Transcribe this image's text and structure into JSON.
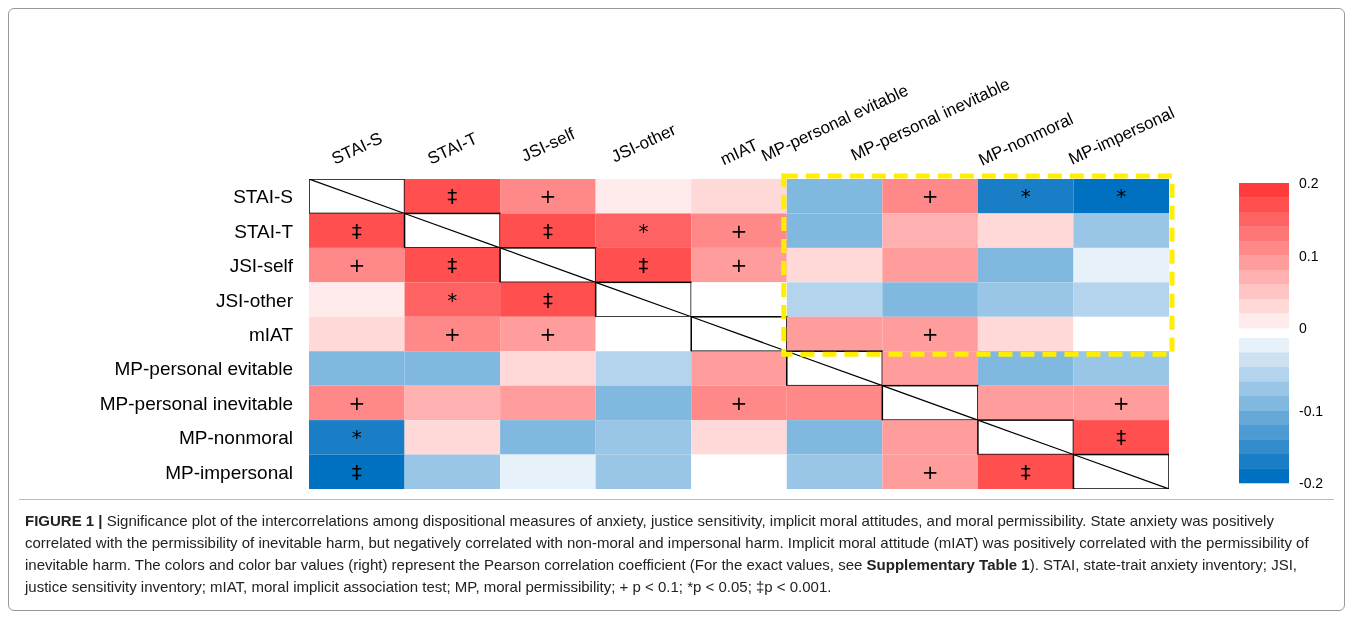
{
  "chart_data": {
    "type": "heatmap",
    "categories": [
      "STAI-S",
      "STAI-T",
      "JSI-self",
      "JSI-other",
      "mIAT",
      "MP-personal evitable",
      "MP-personal inevitable",
      "MP-nonmoral",
      "MP-impersonal"
    ],
    "y_categories": [
      "STAI-S",
      "STAI-T",
      "JSI-self",
      "JSI-other",
      "mIAT",
      "MP-personal evitable",
      "MP-personal inevitable",
      "MP-nonmoral",
      "MP-impersonal"
    ],
    "cells": [
      [
        null,
        0.17,
        0.12,
        0.01,
        0.04,
        -0.1,
        0.12,
        -0.18,
        -0.2
      ],
      [
        0.17,
        null,
        0.17,
        0.15,
        0.12,
        -0.09,
        0.07,
        0.04,
        -0.07
      ],
      [
        0.12,
        0.17,
        null,
        0.17,
        0.09,
        0.04,
        0.09,
        -0.09,
        -0.02
      ],
      [
        0.01,
        0.15,
        0.17,
        null,
        0,
        -0.06,
        -0.1,
        -0.07,
        -0.06
      ],
      [
        0.04,
        0.12,
        0.09,
        0,
        null,
        0.09,
        0.1,
        0.04,
        0
      ],
      [
        -0.1,
        -0.09,
        0.04,
        -0.06,
        0.09,
        null,
        0.1,
        -0.1,
        -0.07
      ],
      [
        0.12,
        0.07,
        0.09,
        -0.1,
        0.12,
        0.12,
        null,
        0.09,
        0.1
      ],
      [
        -0.18,
        0.04,
        -0.09,
        -0.07,
        0.04,
        -0.1,
        0.09,
        null,
        0.17
      ],
      [
        -0.19,
        -0.07,
        -0.02,
        -0.07,
        0,
        -0.07,
        0.1,
        0.17,
        null
      ]
    ],
    "cell_labels": [
      [
        null,
        "‡",
        "+",
        null,
        null,
        null,
        "+",
        "*",
        "*"
      ],
      [
        "‡",
        null,
        "‡",
        "*",
        "+",
        null,
        null,
        null,
        null
      ],
      [
        "+",
        "‡",
        null,
        "‡",
        "+",
        null,
        null,
        null,
        null
      ],
      [
        null,
        "*",
        "‡",
        null,
        null,
        null,
        null,
        null,
        null
      ],
      [
        null,
        "+",
        "+",
        null,
        null,
        null,
        "+",
        null,
        null
      ],
      [
        null,
        null,
        null,
        null,
        null,
        null,
        null,
        null,
        null
      ],
      [
        "+",
        null,
        null,
        null,
        "+",
        null,
        null,
        null,
        "+"
      ],
      [
        "*",
        null,
        null,
        null,
        null,
        null,
        null,
        null,
        "‡"
      ],
      [
        "‡",
        null,
        null,
        null,
        null,
        null,
        "+",
        "‡",
        null
      ]
    ],
    "clim": [
      -0.2,
      0.2
    ],
    "cticks": [
      -0.2,
      -0.1,
      0,
      0.1,
      0.2
    ],
    "annotations": [
      "FIGURE 1 |",
      " Significance plot of the intercorrelations among dispositional measures of anxiety, justice sensitivity, implicit moral attitudes, and moral permissibility. State anxiety was positively correlated with the permissibility of inevitable harm, but negatively correlated with non-moral and impersonal harm. Implicit moral attitude (mIAT) was positively correlated with the permissibility of inevitable harm. The colors and color bar values (right) represent the Pearson correlation coefficient (For the exact values, see ",
      "Supplementary Table 1",
      "). STAI, state-trait anxiety inventory; JSI, justice sensitivity inventory; mIAT, moral implicit association test; MP, moral permissibility; + p < 0.1; *p < 0.05; ‡p < 0.001."
    ]
  }
}
